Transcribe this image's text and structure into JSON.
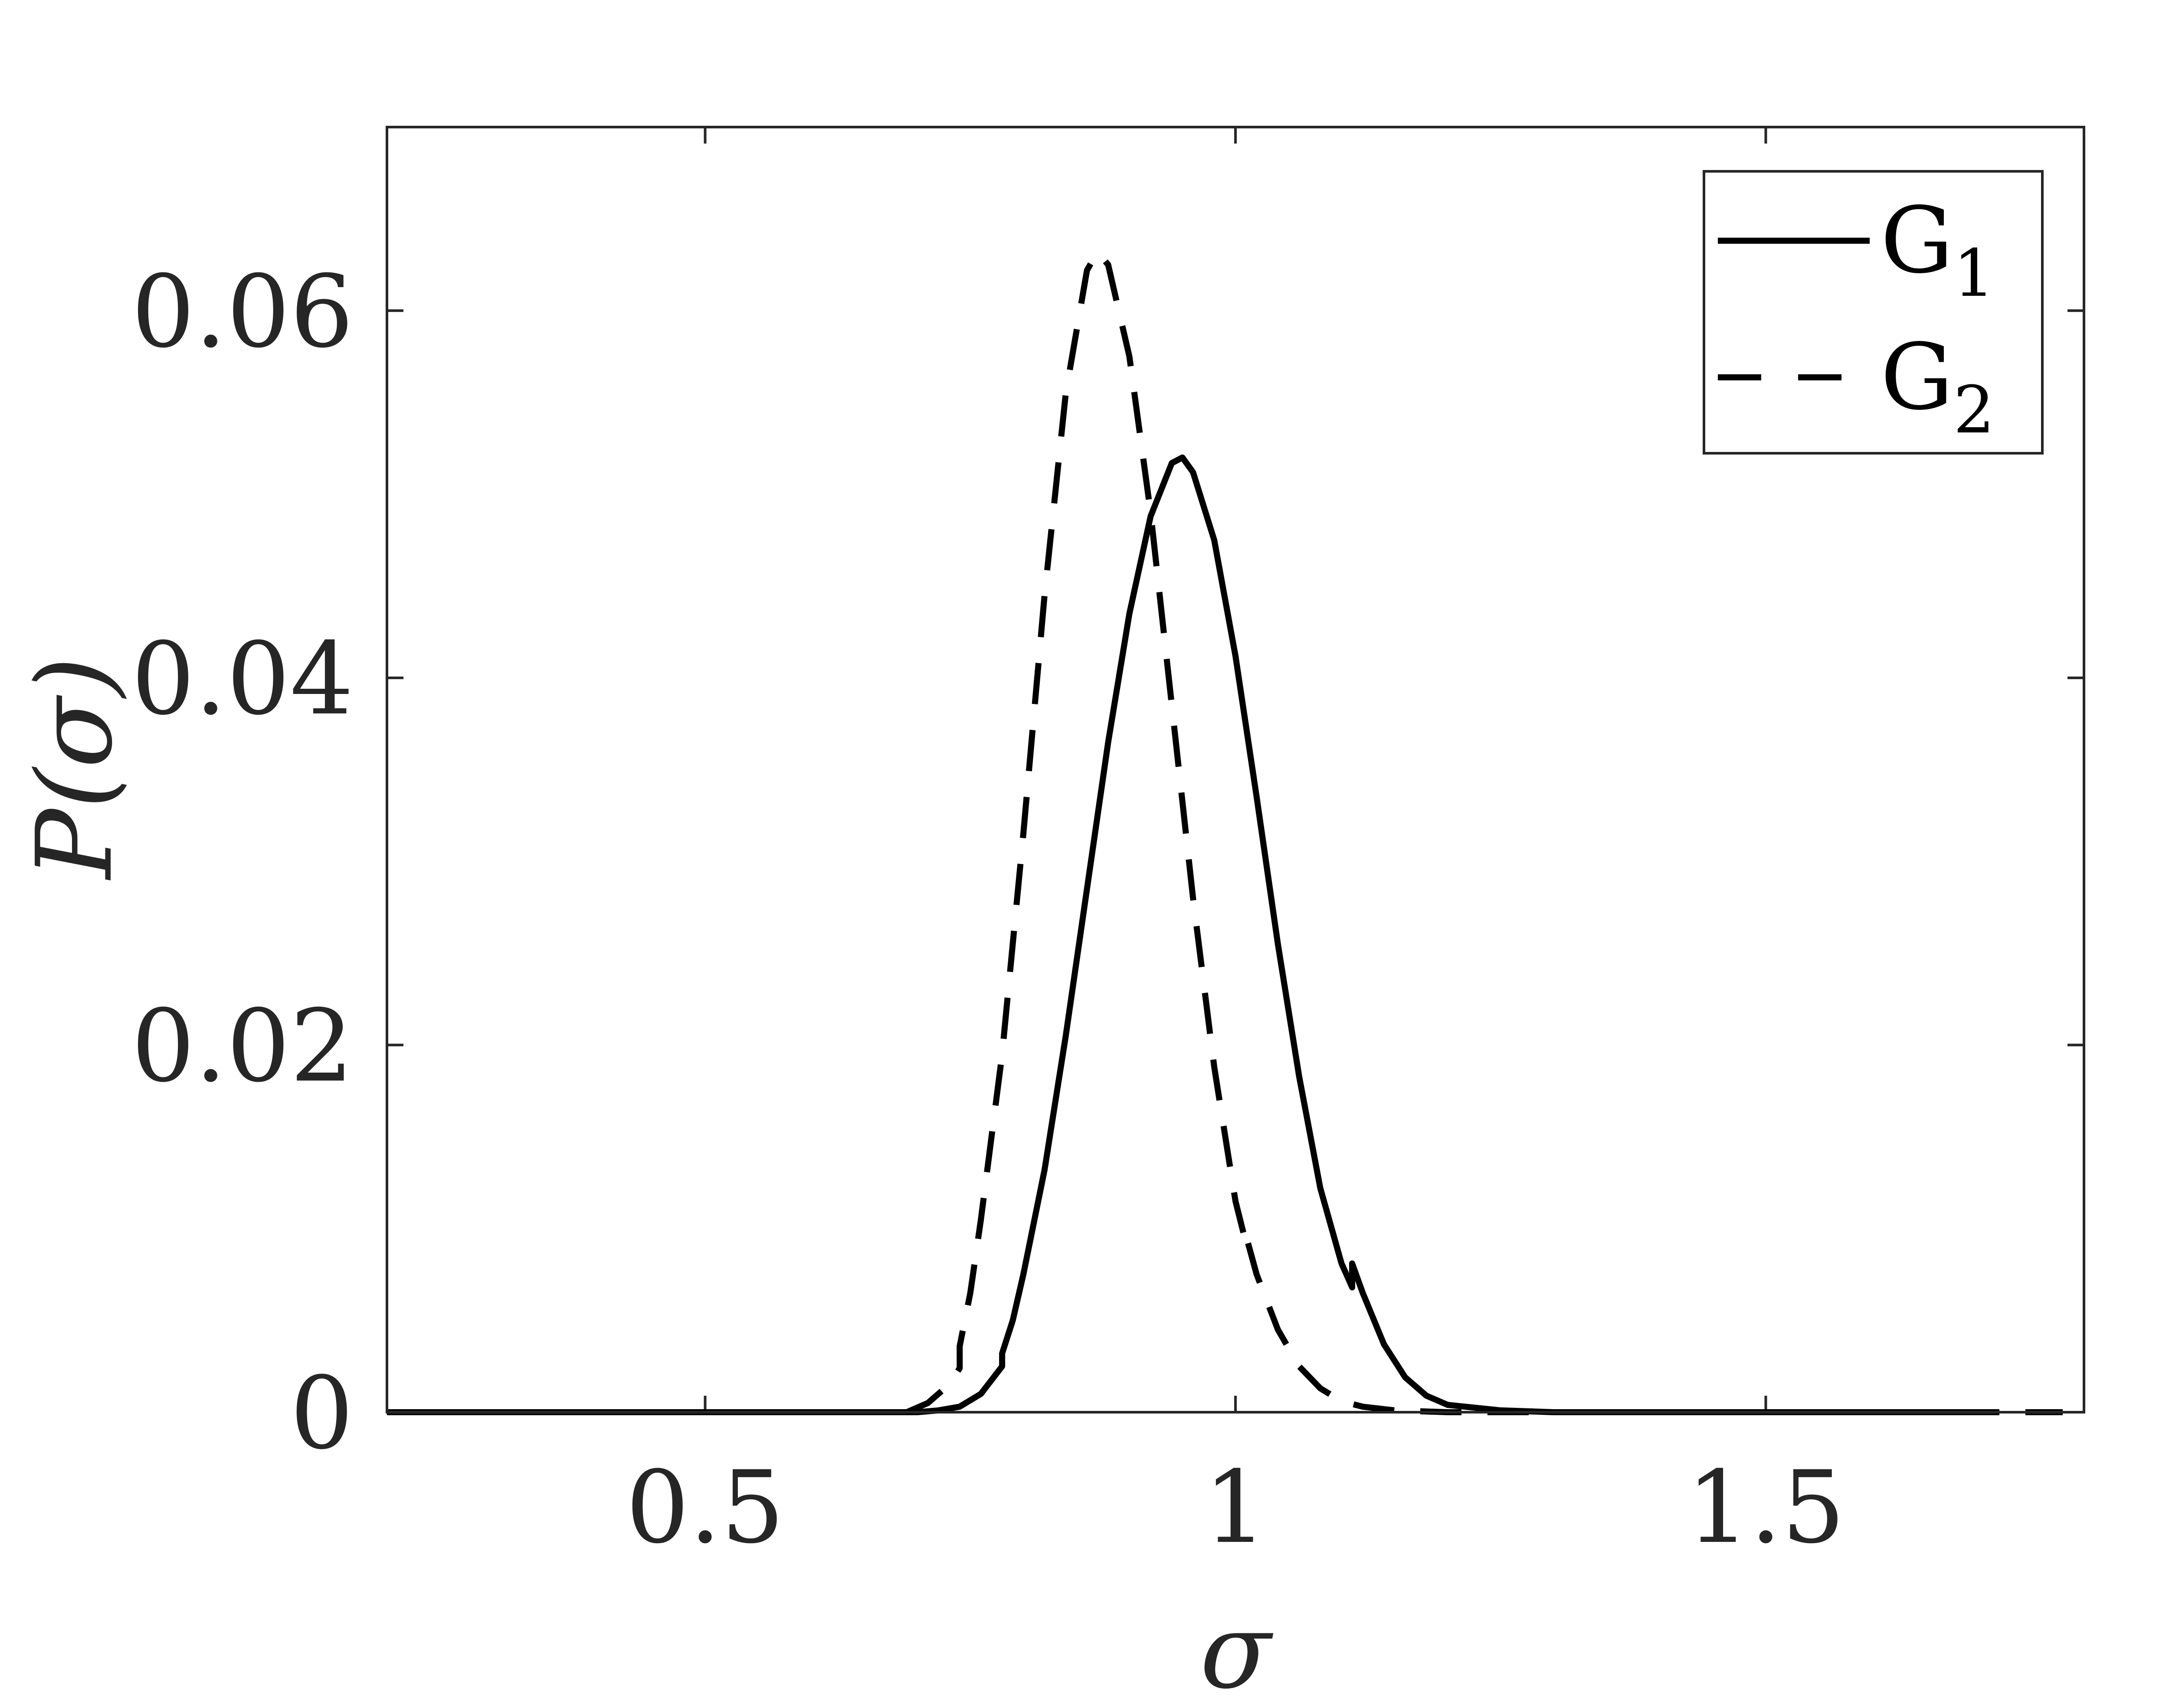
{
  "chart_data": {
    "type": "line",
    "title": "",
    "xlabel": "σ",
    "ylabel": "P(σ)",
    "xlim": [
      0.2,
      1.8
    ],
    "ylim": [
      0,
      0.07
    ],
    "xticks": [
      0.5,
      1,
      1.5
    ],
    "xtick_labels": [
      "0.5",
      "1",
      "1.5"
    ],
    "yticks": [
      0,
      0.02,
      0.04,
      0.06
    ],
    "ytick_labels": [
      "0",
      "0.02",
      "0.04",
      "0.06"
    ],
    "grid": false,
    "legend_position": "top-right",
    "series": [
      {
        "name": "G1",
        "name_base": "G",
        "name_sub": "1",
        "style": "solid",
        "color": "#000000",
        "x": [
          0.2,
          0.5,
          0.7,
          0.72,
          0.74,
          0.76,
          0.78,
          0.78,
          0.79,
          0.8,
          0.82,
          0.84,
          0.86,
          0.88,
          0.9,
          0.92,
          0.94,
          0.95,
          0.96,
          0.98,
          1.0,
          1.02,
          1.04,
          1.06,
          1.08,
          1.1,
          1.11,
          1.11,
          1.12,
          1.14,
          1.16,
          1.18,
          1.2,
          1.25,
          1.3,
          1.4,
          1.5,
          1.7
        ],
        "y": [
          0,
          0,
          0,
          0.0001,
          0.0003,
          0.001,
          0.0025,
          0.0032,
          0.005,
          0.0075,
          0.0132,
          0.0205,
          0.0285,
          0.0365,
          0.0435,
          0.0488,
          0.0517,
          0.052,
          0.0512,
          0.0475,
          0.0412,
          0.0335,
          0.0255,
          0.0183,
          0.0122,
          0.0081,
          0.0068,
          0.0081,
          0.0065,
          0.0037,
          0.0019,
          0.0009,
          0.0004,
          0.0001,
          0,
          0,
          0,
          0
        ]
      },
      {
        "name": "G2",
        "name_base": "G",
        "name_sub": "2",
        "style": "dashed",
        "color": "#000000",
        "x": [
          0.69,
          0.71,
          0.73,
          0.74,
          0.74,
          0.75,
          0.76,
          0.78,
          0.8,
          0.82,
          0.84,
          0.86,
          0.87,
          0.88,
          0.9,
          0.92,
          0.94,
          0.96,
          0.98,
          1.0,
          1.01,
          1.01,
          1.02,
          1.04,
          1.06,
          1.08,
          1.1,
          1.12,
          1.15,
          1.2,
          1.3,
          1.5,
          1.78
        ],
        "y": [
          0,
          0.0005,
          0.0015,
          0.0024,
          0.0036,
          0.0065,
          0.0105,
          0.0195,
          0.0315,
          0.0445,
          0.0555,
          0.0622,
          0.0632,
          0.0625,
          0.0575,
          0.049,
          0.0385,
          0.028,
          0.0188,
          0.0115,
          0.0092,
          0.0096,
          0.0075,
          0.0045,
          0.0025,
          0.0013,
          0.0006,
          0.0003,
          0.0001,
          0,
          0,
          0,
          0
        ]
      }
    ]
  }
}
